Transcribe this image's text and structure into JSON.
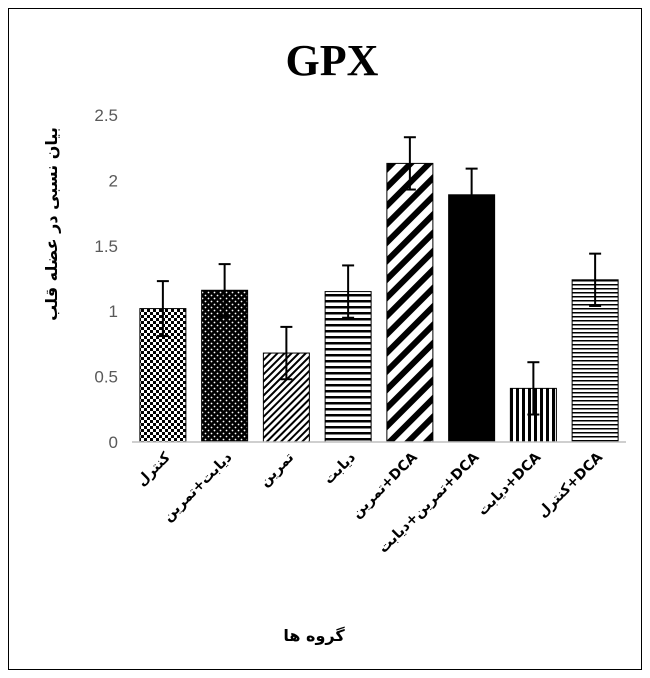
{
  "chart_data": {
    "type": "bar",
    "title": "GPX",
    "ylabel": "بیان نسبی در عضله قلب",
    "xlabel": "گروه ها",
    "ylim": [
      0,
      2.5
    ],
    "yticks": [
      "0",
      "0.5",
      "1",
      "1.5",
      "2",
      "2.5"
    ],
    "categories": [
      "کنترل",
      "دیابت+تمرین",
      "تمرین",
      "دیابت",
      "تمرین+DCA",
      "تمرین+دیابت+DCA",
      "دیابت+DCA",
      "کنترل+DCA"
    ],
    "values": [
      1.02,
      1.16,
      0.68,
      1.15,
      2.13,
      1.89,
      0.41,
      1.24
    ],
    "errors": [
      0.21,
      0.2,
      0.2,
      0.2,
      0.2,
      0.2,
      0.2,
      0.2
    ],
    "patterns": [
      "checker",
      "dots",
      "diag-thin",
      "hstripes",
      "diag-wide",
      "solid",
      "vstripes",
      "hstripes-fine"
    ],
    "grid": false,
    "legend": "none"
  }
}
